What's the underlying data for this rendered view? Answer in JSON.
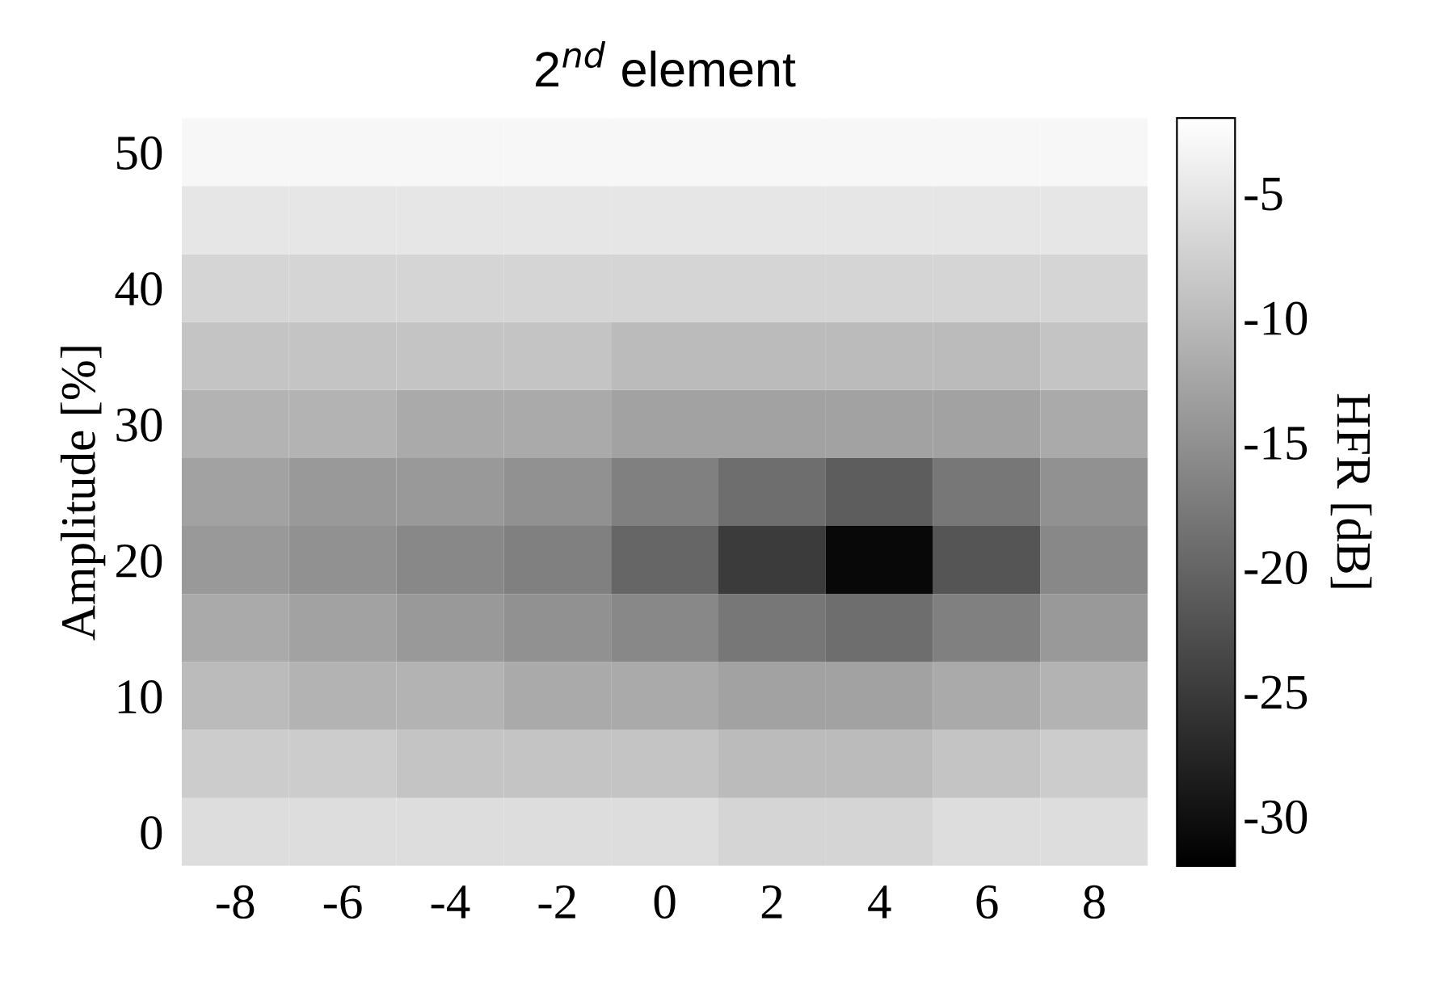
{
  "chart_data": {
    "type": "heatmap",
    "title": "2$^{nd}$ element",
    "ylabel": "Amplitude [%]",
    "clabel": "HFR [dB]",
    "categories": [
      "-8",
      "-6",
      "-4",
      "-2",
      "0",
      "2",
      "4",
      "6",
      "8"
    ],
    "y_categories": [
      "50",
      null,
      "40",
      null,
      "30",
      null,
      "20",
      null,
      "10",
      null,
      "0"
    ],
    "cells": [
      [
        -3,
        -3,
        -3,
        -3,
        -3,
        -3,
        -3,
        -3,
        -3
      ],
      [
        -5,
        -5,
        -5,
        -5,
        -5,
        -5,
        -5,
        -5,
        -5
      ],
      [
        -7,
        -7,
        -7,
        -7,
        -7,
        -7,
        -7,
        -7,
        -7
      ],
      [
        -9,
        -9,
        -9,
        -9,
        -10,
        -10,
        -10,
        -10,
        -9
      ],
      [
        -11,
        -11,
        -12,
        -12,
        -13,
        -13,
        -13,
        -13,
        -12
      ],
      [
        -13,
        -14,
        -14,
        -15,
        -17,
        -19,
        -21,
        -18,
        -15
      ],
      [
        -14,
        -15,
        -16,
        -17,
        -20,
        -25,
        -31,
        -22,
        -16
      ],
      [
        -12,
        -13,
        -14,
        -15,
        -16,
        -18,
        -19,
        -17,
        -14
      ],
      [
        -10,
        -11,
        -11,
        -12,
        -12,
        -13,
        -13,
        -12,
        -11
      ],
      [
        -8,
        -8,
        -9,
        -9,
        -9,
        -10,
        -10,
        -9,
        -8
      ],
      [
        -6,
        -6,
        -6,
        -6,
        -6,
        -7,
        -7,
        -6,
        -6
      ]
    ],
    "clim": [
      -32,
      -2
    ],
    "cticks": [
      -30,
      -25,
      -20,
      -15,
      -10,
      -5
    ],
    "grid": false
  }
}
